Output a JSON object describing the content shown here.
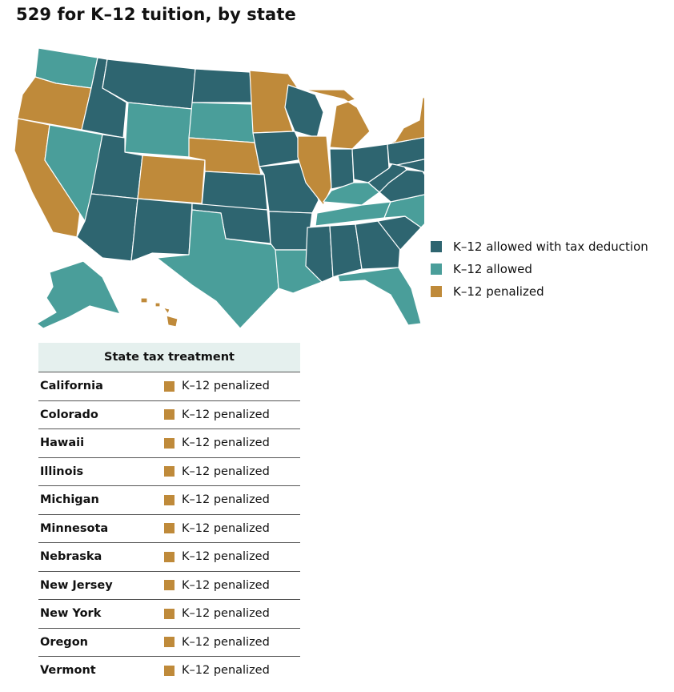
{
  "title": "529 for K–12 tuition, by state",
  "colors": {
    "deduction": "#2e6570",
    "allowed": "#4a9e9a",
    "penalized": "#bf8a3a"
  },
  "legend": [
    {
      "label": "K–12 allowed with tax deduction",
      "color": "#2e6570"
    },
    {
      "label": "K–12 allowed",
      "color": "#4a9e9a"
    },
    {
      "label": "K–12 penalized",
      "color": "#bf8a3a"
    }
  ],
  "table": {
    "header": "State tax treatment",
    "rows": [
      {
        "state": "California",
        "treatment": "K–12 penalized"
      },
      {
        "state": "Colorado",
        "treatment": "K–12 penalized"
      },
      {
        "state": "Hawaii",
        "treatment": "K–12 penalized"
      },
      {
        "state": "Illinois",
        "treatment": "K–12 penalized"
      },
      {
        "state": "Michigan",
        "treatment": "K–12 penalized"
      },
      {
        "state": "Minnesota",
        "treatment": "K–12 penalized"
      },
      {
        "state": "Nebraska",
        "treatment": "K–12 penalized"
      },
      {
        "state": "New Jersey",
        "treatment": "K–12 penalized"
      },
      {
        "state": "New York",
        "treatment": "K–12 penalized"
      },
      {
        "state": "Oregon",
        "treatment": "K–12 penalized"
      },
      {
        "state": "Vermont",
        "treatment": "K–12 penalized"
      }
    ]
  }
}
